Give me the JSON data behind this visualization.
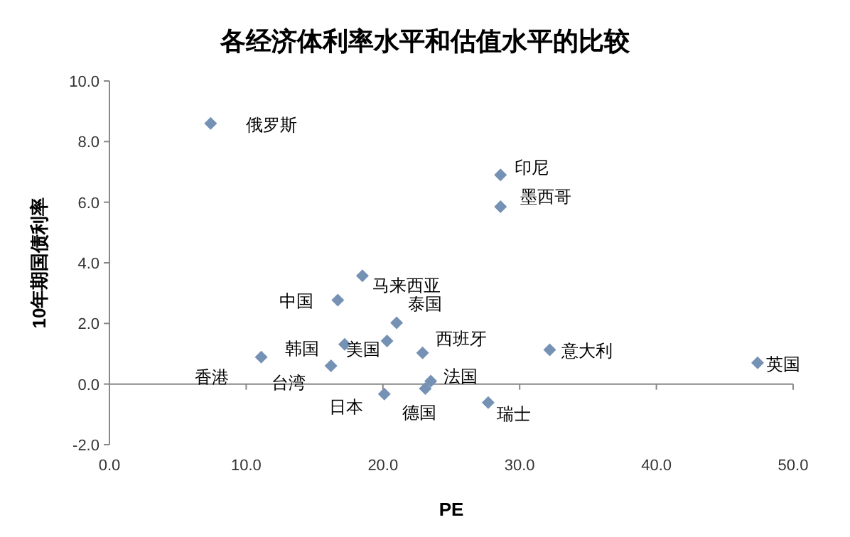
{
  "chart_data": {
    "type": "scatter",
    "title": "各经济体利率水平和估值水平的比较",
    "xlabel": "PE",
    "ylabel": "10年期国债利率",
    "marker": "diamond",
    "xlim": [
      0,
      50
    ],
    "ylim": [
      -2,
      10
    ],
    "xticks": [
      {
        "value": 0,
        "label": "0.0"
      },
      {
        "value": 10,
        "label": "10.0"
      },
      {
        "value": 20,
        "label": "20.0"
      },
      {
        "value": 30,
        "label": "30.0"
      },
      {
        "value": 40,
        "label": "40.0"
      },
      {
        "value": 50,
        "label": "50.0"
      }
    ],
    "yticks": [
      {
        "value": -2,
        "label": "-2.0"
      },
      {
        "value": 0,
        "label": "0.0"
      },
      {
        "value": 2,
        "label": "2.0"
      },
      {
        "value": 4,
        "label": "4.0"
      },
      {
        "value": 6,
        "label": "6.0"
      },
      {
        "value": 8,
        "label": "8.0"
      },
      {
        "value": 10,
        "label": "10.0"
      }
    ],
    "series": [
      {
        "color": "#7592b4",
        "x": [
          7.4,
          28.6,
          28.6,
          18.5,
          16.7,
          21.0,
          17.2,
          20.3,
          11.1,
          16.2,
          20.1,
          23.1,
          23.5,
          22.9,
          32.2,
          47.4,
          27.7
        ],
        "values": [
          8.6,
          6.9,
          5.85,
          3.57,
          2.77,
          2.02,
          1.31,
          1.42,
          0.89,
          0.6,
          -0.33,
          -0.15,
          0.1,
          1.03,
          1.13,
          0.7,
          -0.61
        ]
      }
    ],
    "annotations": [
      {
        "text": "俄罗斯",
        "x": 7.4,
        "y": 8.6
      },
      {
        "text": "印尼",
        "x": 28.6,
        "y": 6.9
      },
      {
        "text": "墨西哥",
        "x": 28.6,
        "y": 5.85
      },
      {
        "text": "马来西亚",
        "x": 18.5,
        "y": 3.57
      },
      {
        "text": "中国",
        "x": 16.7,
        "y": 2.77
      },
      {
        "text": "泰国",
        "x": 21.0,
        "y": 2.02
      },
      {
        "text": "韩国",
        "x": 17.2,
        "y": 1.31
      },
      {
        "text": "美国",
        "x": 20.3,
        "y": 1.42
      },
      {
        "text": "香港",
        "x": 11.1,
        "y": 0.89
      },
      {
        "text": "台湾",
        "x": 16.2,
        "y": 0.6
      },
      {
        "text": "日本",
        "x": 20.1,
        "y": -0.33
      },
      {
        "text": "德国",
        "x": 23.1,
        "y": -0.15
      },
      {
        "text": "法国",
        "x": 23.5,
        "y": 0.1
      },
      {
        "text": "西班牙",
        "x": 22.9,
        "y": 1.03
      },
      {
        "text": "意大利",
        "x": 32.2,
        "y": 1.13
      },
      {
        "text": "英国",
        "x": 47.4,
        "y": 0.7
      },
      {
        "text": "瑞士",
        "x": 27.7,
        "y": -0.61
      }
    ]
  }
}
